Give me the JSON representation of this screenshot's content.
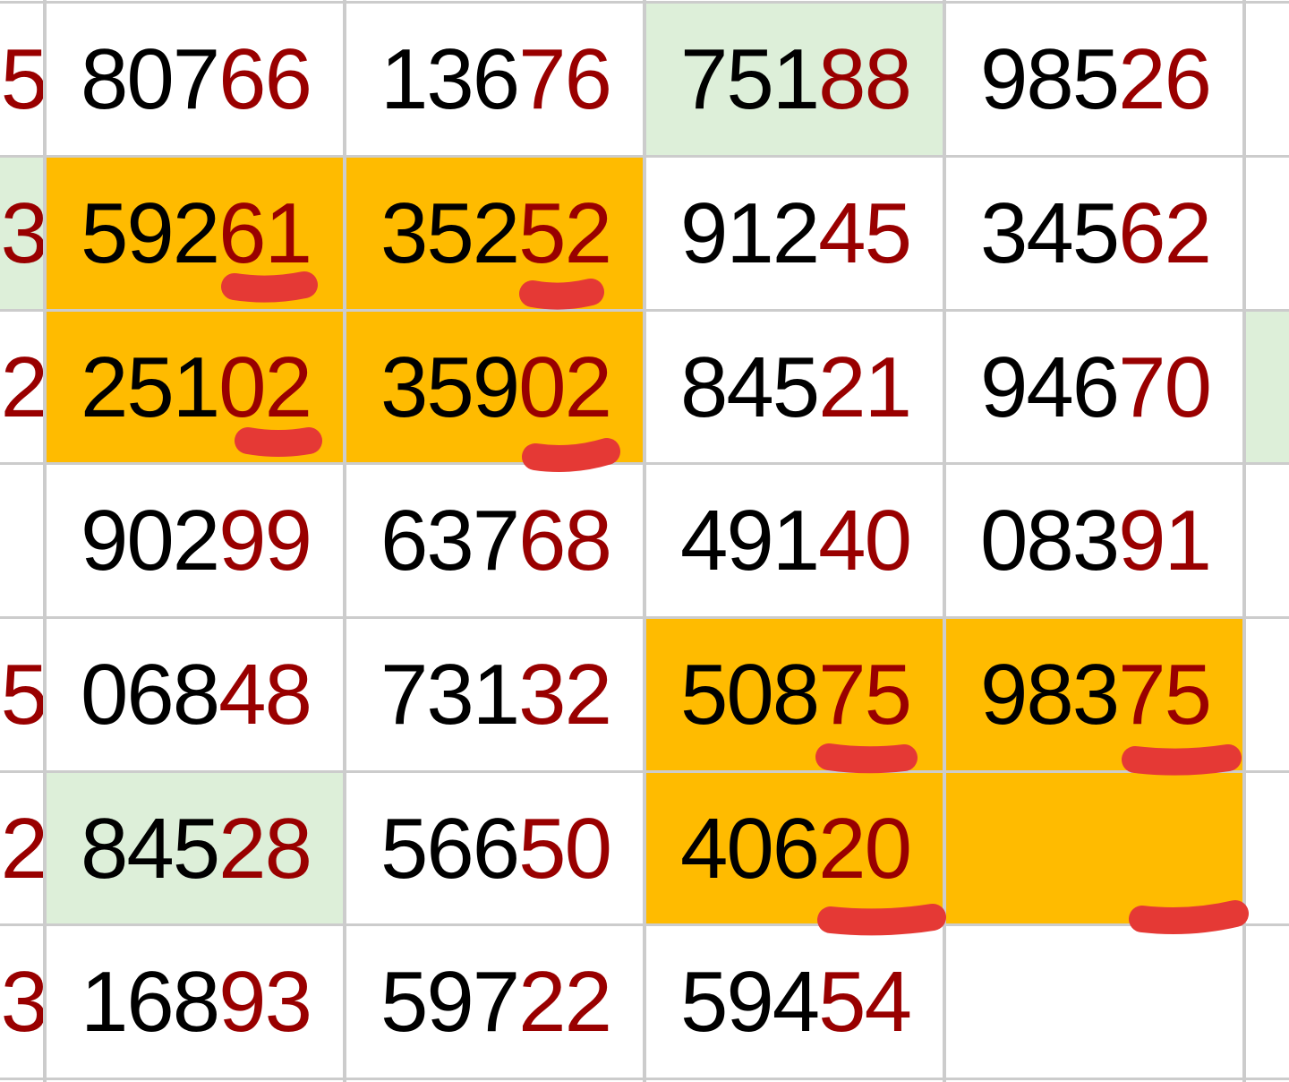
{
  "colors": {
    "highlight_orange": "#FFBB00",
    "highlight_green": "#DDEFD9",
    "digit_red": "#990000",
    "digit_black": "#000000",
    "grid": "#CCCCCC",
    "marker_red": "#E53935"
  },
  "left_edge_column": [
    {
      "red": "5",
      "bg": "white"
    },
    {
      "red": "3",
      "bg": "green"
    },
    {
      "red": "2",
      "bg": "white"
    },
    {
      "red": "",
      "bg": "white"
    },
    {
      "red": "5",
      "bg": "white"
    },
    {
      "red": "2",
      "bg": "white"
    },
    {
      "red": "3",
      "bg": "white"
    }
  ],
  "right_edge_column": [
    {
      "bg": "white"
    },
    {
      "bg": "white"
    },
    {
      "bg": "green"
    },
    {
      "bg": "white"
    },
    {
      "bg": "white"
    },
    {
      "bg": "white"
    },
    {
      "bg": "white"
    }
  ],
  "rows": [
    [
      {
        "black": "807",
        "red": "66",
        "bg": "white"
      },
      {
        "black": "136",
        "red": "76",
        "bg": "white"
      },
      {
        "black": "751",
        "red": "88",
        "bg": "green"
      },
      {
        "black": "985",
        "red": "26",
        "bg": "white"
      }
    ],
    [
      {
        "black": "592",
        "red": "61",
        "bg": "orange",
        "marked": true
      },
      {
        "black": "352",
        "red": "52",
        "bg": "orange",
        "marked": true
      },
      {
        "black": "912",
        "red": "45",
        "bg": "white"
      },
      {
        "black": "345",
        "red": "62",
        "bg": "white"
      }
    ],
    [
      {
        "black": "251",
        "red": "02",
        "bg": "orange",
        "marked": true
      },
      {
        "black": "359",
        "red": "02",
        "bg": "orange",
        "marked": true
      },
      {
        "black": "845",
        "red": "21",
        "bg": "white"
      },
      {
        "black": "946",
        "red": "70",
        "bg": "white"
      }
    ],
    [
      {
        "black": "902",
        "red": "99",
        "bg": "white"
      },
      {
        "black": "637",
        "red": "68",
        "bg": "white"
      },
      {
        "black": "491",
        "red": "40",
        "bg": "white"
      },
      {
        "black": "083",
        "red": "91",
        "bg": "white"
      }
    ],
    [
      {
        "black": "068",
        "red": "48",
        "bg": "white"
      },
      {
        "black": "731",
        "red": "32",
        "bg": "white"
      },
      {
        "black": "508",
        "red": "75",
        "bg": "orange",
        "marked": true
      },
      {
        "black": "983",
        "red": "75",
        "bg": "orange",
        "marked": true
      }
    ],
    [
      {
        "black": "845",
        "red": "28",
        "bg": "green"
      },
      {
        "black": "566",
        "red": "50",
        "bg": "white"
      },
      {
        "black": "406",
        "red": "20",
        "bg": "orange",
        "marked": true
      },
      {
        "black": "",
        "red": "",
        "bg": "orange",
        "marked": true
      }
    ],
    [
      {
        "black": "168",
        "red": "93",
        "bg": "white"
      },
      {
        "black": "597",
        "red": "22",
        "bg": "white"
      },
      {
        "black": "594",
        "red": "54",
        "bg": "white"
      },
      {
        "black": "",
        "red": "",
        "bg": "white"
      }
    ]
  ]
}
